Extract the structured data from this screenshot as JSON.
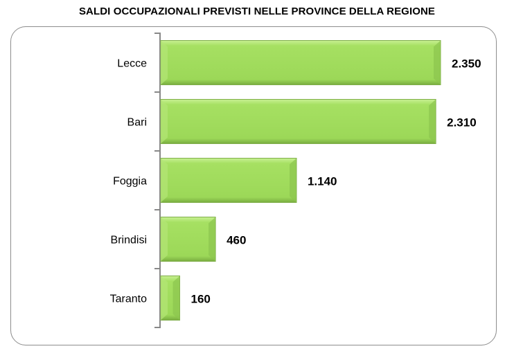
{
  "chart_data": {
    "type": "bar",
    "orientation": "horizontal",
    "title": "SALDI OCCUPAZIONALI PREVISTI NELLE PROVINCE DELLA REGIONE",
    "categories": [
      "Lecce",
      "Bari",
      "Foggia",
      "Brindisi",
      "Taranto"
    ],
    "values": [
      2350,
      2310,
      1140,
      460,
      160
    ],
    "data_labels": [
      "2.350",
      "2.310",
      "1.140",
      "460",
      "160"
    ],
    "xlabel": "",
    "ylabel": "",
    "xlim": [
      0,
      2350
    ],
    "grid": false,
    "legend": "none",
    "bar_color": "#9edc5a"
  }
}
